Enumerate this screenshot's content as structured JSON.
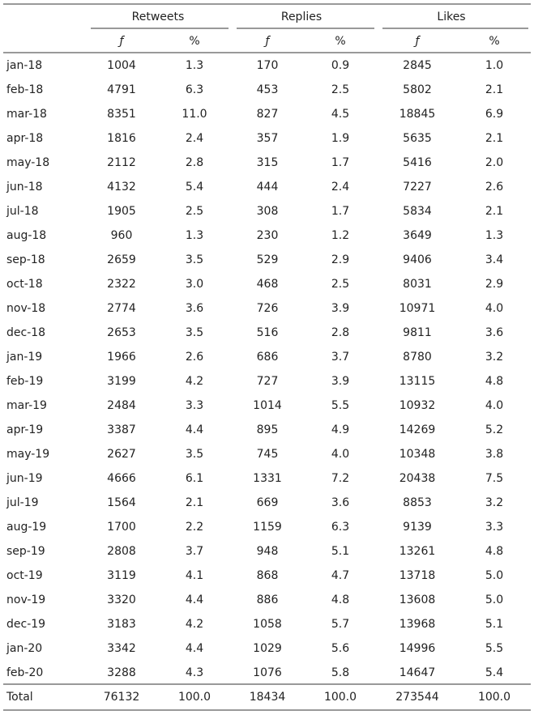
{
  "table": {
    "groups": [
      "Retweets",
      "Replies",
      "Likes"
    ],
    "subheaders": [
      "ƒ",
      "%",
      "ƒ",
      "%",
      "ƒ",
      "%"
    ],
    "rows": [
      [
        "jan-18",
        "1004",
        "1.3",
        "170",
        "0.9",
        "2845",
        "1.0"
      ],
      [
        "feb-18",
        "4791",
        "6.3",
        "453",
        "2.5",
        "5802",
        "2.1"
      ],
      [
        "mar-18",
        "8351",
        "11.0",
        "827",
        "4.5",
        "18845",
        "6.9"
      ],
      [
        "apr-18",
        "1816",
        "2.4",
        "357",
        "1.9",
        "5635",
        "2.1"
      ],
      [
        "may-18",
        "2112",
        "2.8",
        "315",
        "1.7",
        "5416",
        "2.0"
      ],
      [
        "jun-18",
        "4132",
        "5.4",
        "444",
        "2.4",
        "7227",
        "2.6"
      ],
      [
        "jul-18",
        "1905",
        "2.5",
        "308",
        "1.7",
        "5834",
        "2.1"
      ],
      [
        "aug-18",
        "960",
        "1.3",
        "230",
        "1.2",
        "3649",
        "1.3"
      ],
      [
        "sep-18",
        "2659",
        "3.5",
        "529",
        "2.9",
        "9406",
        "3.4"
      ],
      [
        "oct-18",
        "2322",
        "3.0",
        "468",
        "2.5",
        "8031",
        "2.9"
      ],
      [
        "nov-18",
        "2774",
        "3.6",
        "726",
        "3.9",
        "10971",
        "4.0"
      ],
      [
        "dec-18",
        "2653",
        "3.5",
        "516",
        "2.8",
        "9811",
        "3.6"
      ],
      [
        "jan-19",
        "1966",
        "2.6",
        "686",
        "3.7",
        "8780",
        "3.2"
      ],
      [
        "feb-19",
        "3199",
        "4.2",
        "727",
        "3.9",
        "13115",
        "4.8"
      ],
      [
        "mar-19",
        "2484",
        "3.3",
        "1014",
        "5.5",
        "10932",
        "4.0"
      ],
      [
        "apr-19",
        "3387",
        "4.4",
        "895",
        "4.9",
        "14269",
        "5.2"
      ],
      [
        "may-19",
        "2627",
        "3.5",
        "745",
        "4.0",
        "10348",
        "3.8"
      ],
      [
        "jun-19",
        "4666",
        "6.1",
        "1331",
        "7.2",
        "20438",
        "7.5"
      ],
      [
        "jul-19",
        "1564",
        "2.1",
        "669",
        "3.6",
        "8853",
        "3.2"
      ],
      [
        "aug-19",
        "1700",
        "2.2",
        "1159",
        "6.3",
        "9139",
        "3.3"
      ],
      [
        "sep-19",
        "2808",
        "3.7",
        "948",
        "5.1",
        "13261",
        "4.8"
      ],
      [
        "oct-19",
        "3119",
        "4.1",
        "868",
        "4.7",
        "13718",
        "5.0"
      ],
      [
        "nov-19",
        "3320",
        "4.4",
        "886",
        "4.8",
        "13608",
        "5.0"
      ],
      [
        "dec-19",
        "3183",
        "4.2",
        "1058",
        "5.7",
        "13968",
        "5.1"
      ],
      [
        "jan-20",
        "3342",
        "4.4",
        "1029",
        "5.6",
        "14996",
        "5.5"
      ],
      [
        "feb-20",
        "3288",
        "4.3",
        "1076",
        "5.8",
        "14647",
        "5.4"
      ]
    ],
    "total": [
      "Total",
      "76132",
      "100.0",
      "18434",
      "100.0",
      "273544",
      "100.0"
    ]
  }
}
